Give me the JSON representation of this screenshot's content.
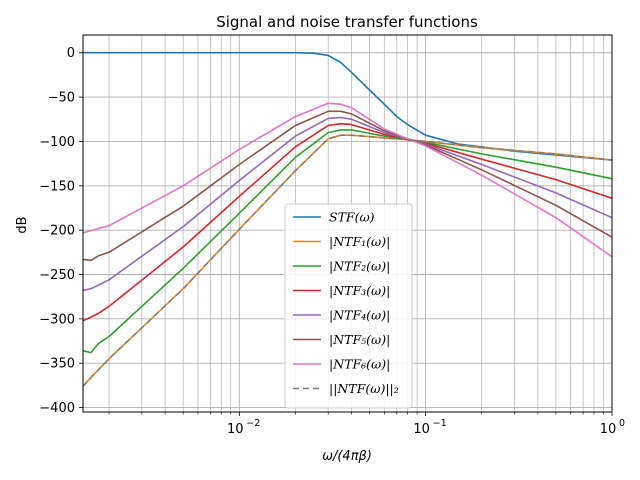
{
  "chart_data": {
    "type": "line",
    "title": "Signal and noise transfer functions",
    "xlabel": "ω/(4πβ)",
    "ylabel": "dB",
    "xscale": "log",
    "xlim": [
      0.00145,
      1.0
    ],
    "ylim": [
      -405,
      20
    ],
    "xticks": [
      {
        "value": 0.01,
        "base": "10",
        "exp": "−2"
      },
      {
        "value": 0.1,
        "base": "10",
        "exp": "−1"
      },
      {
        "value": 1.0,
        "base": "10",
        "exp": "0"
      }
    ],
    "yticks": [
      {
        "value": 0,
        "label": "0"
      },
      {
        "value": -50,
        "label": "−50"
      },
      {
        "value": -100,
        "label": "−100"
      },
      {
        "value": -150,
        "label": "−150"
      },
      {
        "value": -200,
        "label": "−200"
      },
      {
        "value": -250,
        "label": "−250"
      },
      {
        "value": -300,
        "label": "−300"
      },
      {
        "value": -350,
        "label": "−350"
      },
      {
        "value": -400,
        "label": "−400"
      }
    ],
    "grid": "major and minor",
    "legend_position": "lower center",
    "series": [
      {
        "name": "STF(ω)",
        "color": "#1f77b4",
        "dash": "",
        "points": [
          [
            0.00145,
            0
          ],
          [
            0.01,
            0
          ],
          [
            0.02,
            0
          ],
          [
            0.025,
            -0.5
          ],
          [
            0.03,
            -3
          ],
          [
            0.035,
            -11
          ],
          [
            0.04,
            -22
          ],
          [
            0.05,
            -42
          ],
          [
            0.06,
            -58
          ],
          [
            0.07,
            -72
          ],
          [
            0.08,
            -81
          ],
          [
            0.1,
            -93
          ],
          [
            0.15,
            -103
          ],
          [
            0.3,
            -111
          ],
          [
            1.0,
            -121
          ]
        ]
      },
      {
        "name": "|NTF₁(ω)|",
        "color": "#ff7f0e",
        "dash": "",
        "points": [
          [
            0.00145,
            -376
          ],
          [
            0.0016,
            -366
          ],
          [
            0.002,
            -345
          ],
          [
            0.005,
            -266
          ],
          [
            0.01,
            -199
          ],
          [
            0.02,
            -133
          ],
          [
            0.03,
            -97
          ],
          [
            0.035,
            -93
          ],
          [
            0.04,
            -93
          ],
          [
            0.06,
            -96
          ],
          [
            0.08,
            -98
          ],
          [
            0.1,
            -100
          ],
          [
            0.2,
            -107
          ],
          [
            0.5,
            -114
          ],
          [
            1.0,
            -121
          ]
        ]
      },
      {
        "name": "|NTF₂(ω)|",
        "color": "#2ca02c",
        "dash": "",
        "points": [
          [
            0.00145,
            -336
          ],
          [
            0.0016,
            -338
          ],
          [
            0.00175,
            -328
          ],
          [
            0.002,
            -320
          ],
          [
            0.005,
            -243
          ],
          [
            0.01,
            -181
          ],
          [
            0.02,
            -118
          ],
          [
            0.03,
            -90
          ],
          [
            0.035,
            -87
          ],
          [
            0.04,
            -87
          ],
          [
            0.06,
            -94
          ],
          [
            0.08,
            -98
          ],
          [
            0.1,
            -101
          ],
          [
            0.2,
            -114
          ],
          [
            0.5,
            -129
          ],
          [
            1.0,
            -142
          ]
        ]
      },
      {
        "name": "|NTF₃(ω)|",
        "color": "#d62728",
        "dash": "",
        "points": [
          [
            0.00145,
            -302
          ],
          [
            0.0016,
            -298
          ],
          [
            0.00175,
            -294
          ],
          [
            0.002,
            -286
          ],
          [
            0.005,
            -219
          ],
          [
            0.01,
            -162
          ],
          [
            0.02,
            -106
          ],
          [
            0.03,
            -82
          ],
          [
            0.035,
            -80
          ],
          [
            0.04,
            -81
          ],
          [
            0.06,
            -92
          ],
          [
            0.08,
            -98
          ],
          [
            0.1,
            -102
          ],
          [
            0.2,
            -120
          ],
          [
            0.5,
            -143
          ],
          [
            1.0,
            -164
          ]
        ]
      },
      {
        "name": "|NTF₄(ω)|",
        "color": "#9467bd",
        "dash": "",
        "points": [
          [
            0.00145,
            -268
          ],
          [
            0.0016,
            -266
          ],
          [
            0.00175,
            -262
          ],
          [
            0.002,
            -256
          ],
          [
            0.005,
            -196
          ],
          [
            0.01,
            -144
          ],
          [
            0.02,
            -94
          ],
          [
            0.03,
            -74
          ],
          [
            0.035,
            -73
          ],
          [
            0.04,
            -75
          ],
          [
            0.06,
            -90
          ],
          [
            0.08,
            -97
          ],
          [
            0.1,
            -103
          ],
          [
            0.2,
            -126
          ],
          [
            0.5,
            -158
          ],
          [
            1.0,
            -186
          ]
        ]
      },
      {
        "name": "|NTF₅(ω)|",
        "color": "#8c564b",
        "dash": "",
        "points": [
          [
            0.00145,
            -233
          ],
          [
            0.0016,
            -234
          ],
          [
            0.00175,
            -229
          ],
          [
            0.002,
            -225
          ],
          [
            0.005,
            -173
          ],
          [
            0.01,
            -126
          ],
          [
            0.02,
            -82
          ],
          [
            0.03,
            -66
          ],
          [
            0.035,
            -66
          ],
          [
            0.04,
            -69
          ],
          [
            0.06,
            -88
          ],
          [
            0.08,
            -97
          ],
          [
            0.1,
            -104
          ],
          [
            0.2,
            -132
          ],
          [
            0.5,
            -172
          ],
          [
            1.0,
            -208
          ]
        ]
      },
      {
        "name": "|NTF₆(ω)|",
        "color": "#e377c2",
        "dash": "",
        "points": [
          [
            0.00145,
            -203
          ],
          [
            0.002,
            -195
          ],
          [
            0.005,
            -150
          ],
          [
            0.01,
            -109
          ],
          [
            0.02,
            -72
          ],
          [
            0.03,
            -57
          ],
          [
            0.035,
            -58
          ],
          [
            0.04,
            -62
          ],
          [
            0.06,
            -86
          ],
          [
            0.08,
            -97
          ],
          [
            0.1,
            -105
          ],
          [
            0.2,
            -138
          ],
          [
            0.5,
            -186
          ],
          [
            1.0,
            -230
          ]
        ]
      },
      {
        "name": "||NTF(ω)||₂",
        "color": "#7f7f7f",
        "dash": "6,4",
        "points": [
          [
            0.00145,
            -376
          ],
          [
            0.0016,
            -366
          ],
          [
            0.002,
            -345
          ],
          [
            0.005,
            -266
          ],
          [
            0.01,
            -199
          ],
          [
            0.02,
            -133
          ],
          [
            0.03,
            -97
          ],
          [
            0.035,
            -93
          ],
          [
            0.04,
            -93
          ],
          [
            0.06,
            -96
          ],
          [
            0.08,
            -98
          ],
          [
            0.1,
            -100
          ],
          [
            0.2,
            -107
          ],
          [
            0.5,
            -114
          ],
          [
            1.0,
            -121
          ]
        ]
      }
    ]
  }
}
